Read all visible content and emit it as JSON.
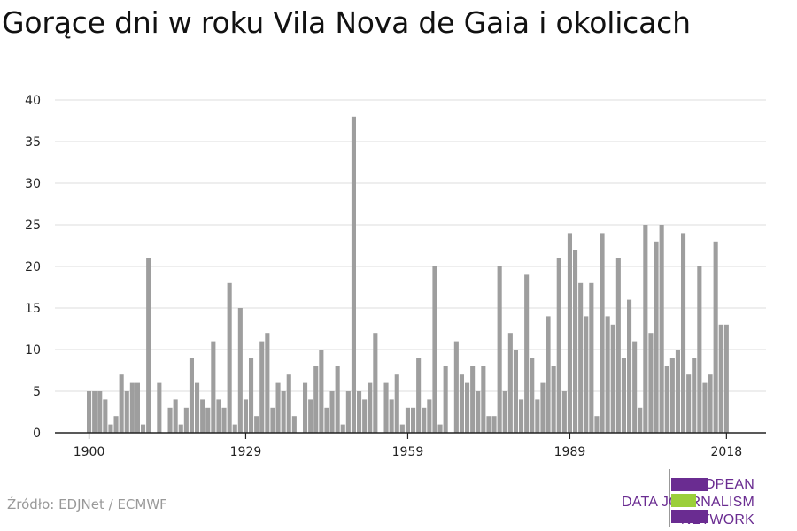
{
  "title": "Gorące dni w roku Vila Nova de Gaia i okolicach",
  "source": "Źródło: EDJNet / ECMWF",
  "logo": {
    "line1": "EUROPEAN",
    "line2": "DATA JOURNALISM",
    "line3": "NETWORK",
    "colors": {
      "purple": "#6a2c91",
      "green": "#9bcf3a"
    }
  },
  "colors": {
    "bar": "#9e9e9e",
    "grid": "#dddddd",
    "axis": "#222222"
  },
  "chart_data": {
    "type": "bar",
    "title": "Gorące dni w roku Vila Nova de Gaia i okolicach",
    "xlabel": "",
    "ylabel": "",
    "x_ticks": [
      "1900",
      "1929",
      "1959",
      "1989",
      "2018"
    ],
    "y_ticks": [
      "0",
      "5",
      "10",
      "15",
      "20",
      "25",
      "30",
      "35",
      "40"
    ],
    "ylim": [
      0,
      40
    ],
    "grid": true,
    "start_year": 1900,
    "values": [
      5,
      5,
      5,
      4,
      1,
      2,
      7,
      5,
      6,
      6,
      1,
      21,
      0,
      6,
      0,
      3,
      4,
      1,
      3,
      9,
      6,
      4,
      3,
      11,
      4,
      3,
      18,
      1,
      15,
      4,
      9,
      2,
      11,
      12,
      3,
      6,
      5,
      7,
      2,
      0,
      6,
      4,
      8,
      10,
      3,
      5,
      8,
      1,
      5,
      38,
      5,
      4,
      6,
      12,
      0,
      6,
      4,
      7,
      1,
      3,
      3,
      9,
      3,
      4,
      20,
      1,
      8,
      0,
      11,
      7,
      6,
      8,
      5,
      8,
      2,
      2,
      20,
      5,
      12,
      10,
      4,
      19,
      9,
      4,
      6,
      14,
      8,
      21,
      5,
      24,
      22,
      18,
      14,
      18,
      2,
      24,
      14,
      13,
      21,
      9,
      16,
      11,
      3,
      25,
      12,
      23,
      25,
      8,
      9,
      10,
      24,
      7,
      9,
      20,
      6,
      7,
      23,
      13,
      13
    ]
  }
}
